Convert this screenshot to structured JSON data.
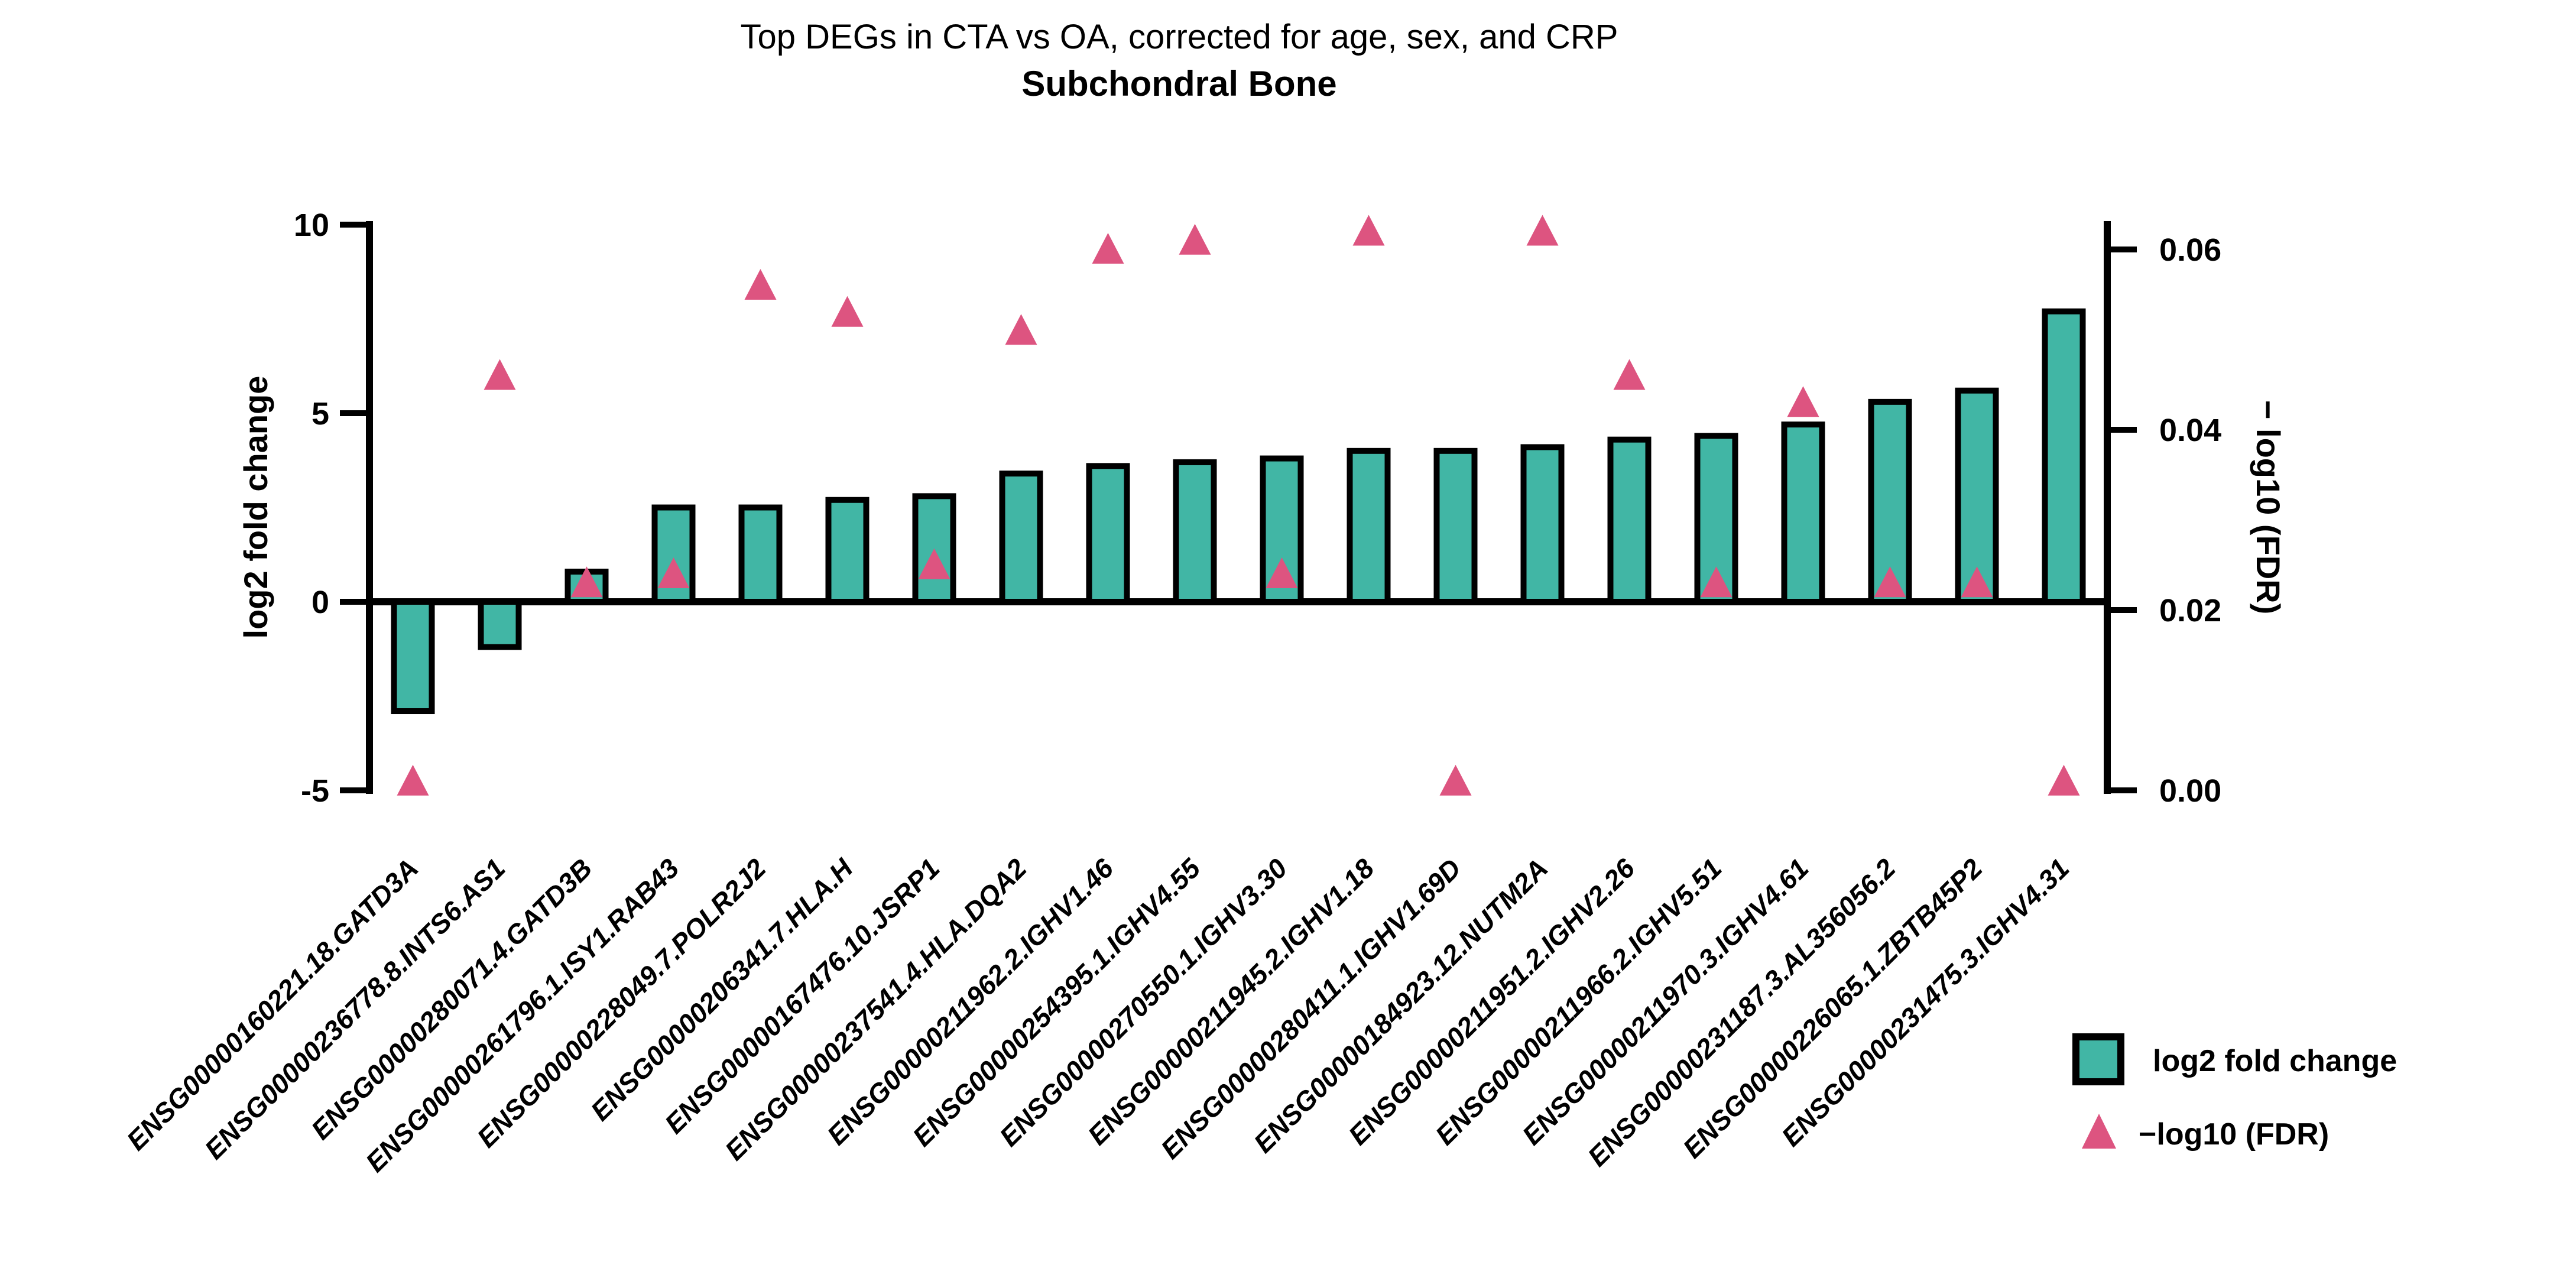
{
  "figure": {
    "title": "Top DEGs in CTA vs OA, corrected for age, sex, and CRP",
    "subtitle": "Subchondral Bone"
  },
  "chart_data": {
    "type": "bar",
    "title": "Top DEGs in CTA vs OA, corrected for age, sex, and CRP",
    "subtitle": "Subchondral Bone",
    "grid": false,
    "legend_position": "bottom-right",
    "categories": [
      "ENSG00000160221.18.GATD3A",
      "ENSG00000236778.8.INTS6.AS1",
      "ENSG00000280071.4.GATD3B",
      "ENSG00000261796.1.ISY1.RAB43",
      "ENSG00000228049.7.POLR2J2",
      "ENSG00000206341.7.HLA.H",
      "ENSG00000167476.10.JSRP1",
      "ENSG00000237541.4.HLA.DQA2",
      "ENSG00000211962.2.IGHV1.46",
      "ENSG00000254395.1.IGHV4.55",
      "ENSG00000270550.1.IGHV3.30",
      "ENSG00000211945.2.IGHV1.18",
      "ENSG00000280411.1.IGHV1.69D",
      "ENSG00000184923.12.NUTM2A",
      "ENSG00000211951.2.IGHV2.26",
      "ENSG00000211966.2.IGHV5.51",
      "ENSG00000211970.3.IGHV4.61",
      "ENSG00000231187.3.AL356056.2",
      "ENSG00000226065.1.ZBTB45P2",
      "ENSG00000231475.3.IGHV4.31"
    ],
    "series": [
      {
        "name": "log2 fold change",
        "type": "bar",
        "axis": "left",
        "color": "#41B6A5",
        "values": [
          -2.9,
          -1.2,
          0.8,
          2.5,
          2.5,
          2.7,
          2.8,
          3.4,
          3.6,
          3.7,
          3.8,
          4.0,
          4.0,
          4.1,
          4.3,
          4.4,
          4.7,
          5.3,
          5.6,
          7.7
        ]
      },
      {
        "name": "−log10 (FDR)",
        "type": "scatter-triangle",
        "axis": "right",
        "color": "#DD5480",
        "values": [
          0.001,
          0.046,
          0.023,
          0.024,
          0.056,
          0.053,
          0.025,
          0.051,
          0.06,
          0.061,
          0.024,
          0.062,
          0.001,
          0.062,
          0.046,
          0.023,
          0.043,
          0.023,
          0.023,
          0.001
        ]
      }
    ],
    "left_axis": {
      "label": "log2 fold change",
      "tick_values": [
        10,
        5,
        0,
        -5
      ],
      "tick_labels": [
        "10",
        "5",
        "0",
        "-5"
      ],
      "range": [
        -5,
        10
      ]
    },
    "right_axis": {
      "label": "− log10 (FDR)",
      "tick_values": [
        0.06,
        0.04,
        0.02,
        0.0
      ],
      "tick_labels": [
        "0.06",
        "0.04",
        "0.02",
        "0.00"
      ],
      "range": [
        0,
        0.0628
      ]
    },
    "legend": [
      {
        "marker": "square",
        "color": "#41B6A5",
        "label": "log2 fold change"
      },
      {
        "marker": "triangle",
        "color": "#DD5480",
        "label": "−log10 (FDR)"
      }
    ]
  },
  "colors": {
    "bar_fill": "#41B6A5",
    "triangle_fill": "#DD5480",
    "axis": "#000000",
    "background": "#FFFFFF"
  }
}
